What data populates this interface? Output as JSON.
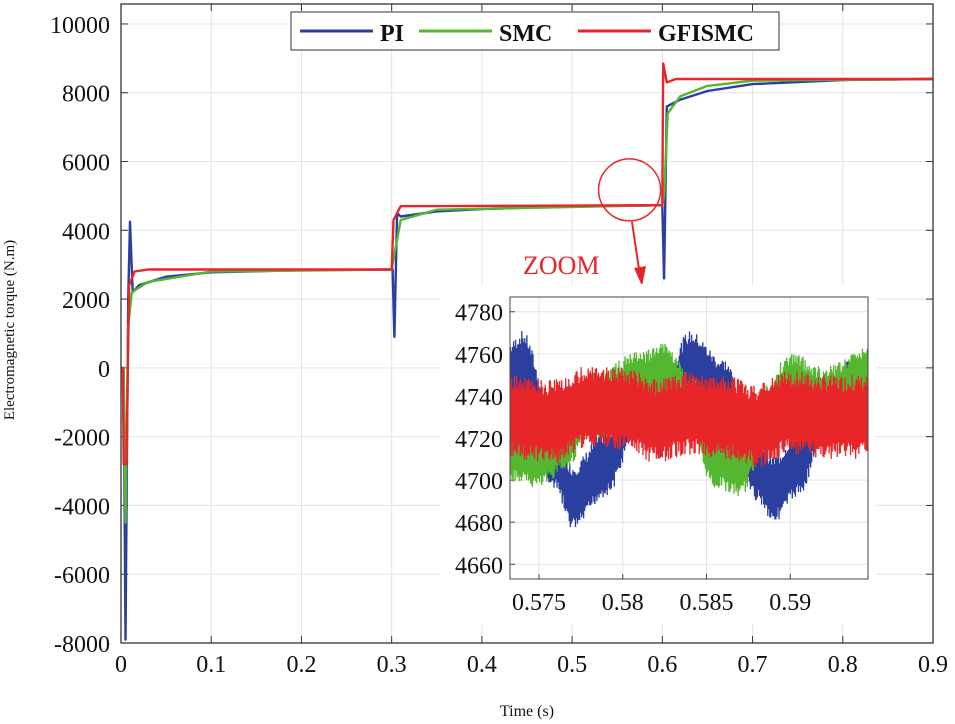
{
  "chart_data": [
    {
      "type": "line",
      "title": "",
      "xlabel": "Time (s)",
      "ylabel": "Electromagnetic torque (N.m)",
      "xlim": [
        0,
        0.9
      ],
      "ylim": [
        -8000,
        10580
      ],
      "grid": true,
      "xticks": [
        0,
        0.1,
        0.2,
        0.3,
        0.4,
        0.5,
        0.6,
        0.7,
        0.8,
        0.9
      ],
      "xtick_labels": [
        "0",
        "0.1",
        "0.2",
        "0.3",
        "0.4",
        "0.5",
        "0.6",
        "0.7",
        "0.8",
        "0.9"
      ],
      "yticks": [
        -8000,
        -6000,
        -4000,
        -2000,
        0,
        2000,
        4000,
        6000,
        8000,
        10000
      ],
      "ytick_labels": [
        "-8000",
        "-6000",
        "-4000",
        "-2000",
        "0",
        "2000",
        "4000",
        "6000",
        "8000",
        "10000"
      ],
      "legend": {
        "placement": "top-center",
        "entries": [
          "PI",
          "SMC",
          "GFISMC"
        ]
      },
      "series": [
        {
          "name": "PI",
          "color": "#2b3f9e",
          "points": [
            [
              0,
              0
            ],
            [
              0.003,
              0
            ],
            [
              0.005,
              -7900
            ],
            [
              0.008,
              2000
            ],
            [
              0.01,
              4250
            ],
            [
              0.013,
              2200
            ],
            [
              0.02,
              2400
            ],
            [
              0.05,
              2650
            ],
            [
              0.1,
              2780
            ],
            [
              0.2,
              2840
            ],
            [
              0.3,
              2860
            ],
            [
              0.301,
              2860
            ],
            [
              0.303,
              900
            ],
            [
              0.306,
              4500
            ],
            [
              0.31,
              4400
            ],
            [
              0.35,
              4550
            ],
            [
              0.4,
              4620
            ],
            [
              0.5,
              4700
            ],
            [
              0.6,
              4730
            ],
            [
              0.602,
              2600
            ],
            [
              0.605,
              7600
            ],
            [
              0.62,
              7800
            ],
            [
              0.65,
              8050
            ],
            [
              0.7,
              8250
            ],
            [
              0.8,
              8370
            ],
            [
              0.9,
              8400
            ]
          ]
        },
        {
          "name": "SMC",
          "color": "#55b630",
          "points": [
            [
              0,
              0
            ],
            [
              0.003,
              0
            ],
            [
              0.005,
              -4500
            ],
            [
              0.008,
              1200
            ],
            [
              0.012,
              2200
            ],
            [
              0.03,
              2500
            ],
            [
              0.1,
              2800
            ],
            [
              0.3,
              2860
            ],
            [
              0.303,
              3300
            ],
            [
              0.31,
              4300
            ],
            [
              0.35,
              4600
            ],
            [
              0.6,
              4730
            ],
            [
              0.602,
              5000
            ],
            [
              0.606,
              7400
            ],
            [
              0.62,
              7900
            ],
            [
              0.65,
              8200
            ],
            [
              0.7,
              8350
            ],
            [
              0.9,
              8400
            ]
          ]
        },
        {
          "name": "GFISMC",
          "color": "#e8262a",
          "points": [
            [
              0,
              0
            ],
            [
              0.002,
              0
            ],
            [
              0.003,
              -2800
            ],
            [
              0.006,
              -2800
            ],
            [
              0.009,
              2400
            ],
            [
              0.015,
              2800
            ],
            [
              0.03,
              2860
            ],
            [
              0.3,
              2860
            ],
            [
              0.302,
              4300
            ],
            [
              0.31,
              4700
            ],
            [
              0.6,
              4730
            ],
            [
              0.601,
              8850
            ],
            [
              0.605,
              8300
            ],
            [
              0.615,
              8400
            ],
            [
              0.9,
              8400
            ]
          ]
        }
      ],
      "annotations": [
        {
          "text": "ZOOM",
          "color": "#e8262a",
          "circle_center": [
            0.5637,
            5174
          ]
        }
      ]
    },
    {
      "type": "line",
      "title": "inset",
      "xlim": [
        0.57327,
        0.59464
      ],
      "ylim": [
        4653,
        4787
      ],
      "grid": true,
      "xticks": [
        0.575,
        0.58,
        0.585,
        0.59
      ],
      "xtick_labels": [
        "0.575",
        "0.58",
        "0.585",
        "0.59"
      ],
      "yticks": [
        4660,
        4680,
        4700,
        4720,
        4740,
        4760,
        4780
      ],
      "ytick_labels": [
        "4660",
        "4680",
        "4700",
        "4720",
        "4740",
        "4760",
        "4780"
      ],
      "series": [
        {
          "name": "PI",
          "color": "#2b3f9e",
          "ripple_amplitude": 16,
          "envelope_center": [
            [
              0.5733,
              4750
            ],
            [
              0.574,
              4755
            ],
            [
              0.576,
              4710
            ],
            [
              0.577,
              4692
            ],
            [
              0.579,
              4708
            ],
            [
              0.581,
              4740
            ],
            [
              0.5825,
              4735
            ],
            [
              0.584,
              4755
            ],
            [
              0.586,
              4742
            ],
            [
              0.588,
              4706
            ],
            [
              0.589,
              4696
            ],
            [
              0.5905,
              4708
            ],
            [
              0.592,
              4735
            ],
            [
              0.5946,
              4745
            ]
          ]
        },
        {
          "name": "SMC",
          "color": "#55b630",
          "ripple_amplitude": 16,
          "envelope_center": [
            [
              0.5733,
              4715
            ],
            [
              0.575,
              4712
            ],
            [
              0.5765,
              4720
            ],
            [
              0.578,
              4735
            ],
            [
              0.581,
              4745
            ],
            [
              0.5825,
              4750
            ],
            [
              0.584,
              4735
            ],
            [
              0.5855,
              4712
            ],
            [
              0.587,
              4708
            ],
            [
              0.5885,
              4730
            ],
            [
              0.59,
              4745
            ],
            [
              0.592,
              4738
            ],
            [
              0.5946,
              4748
            ]
          ]
        },
        {
          "name": "GFISMC",
          "color": "#e8262a",
          "ripple_amplitude": 20,
          "envelope_center": [
            [
              0.5733,
              4730
            ],
            [
              0.576,
              4728
            ],
            [
              0.578,
              4735
            ],
            [
              0.58,
              4734
            ],
            [
              0.582,
              4728
            ],
            [
              0.584,
              4732
            ],
            [
              0.586,
              4730
            ],
            [
              0.588,
              4726
            ],
            [
              0.59,
              4732
            ],
            [
              0.592,
              4730
            ],
            [
              0.5946,
              4730
            ]
          ]
        }
      ]
    }
  ]
}
